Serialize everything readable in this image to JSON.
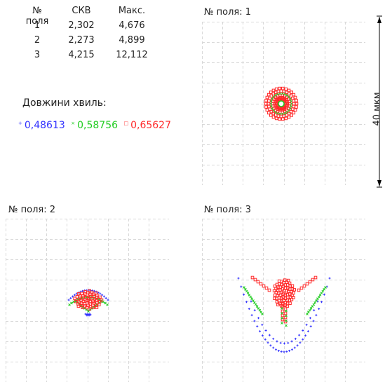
{
  "table": {
    "headers": [
      "№ поля",
      "СКВ",
      "Макс."
    ],
    "rows": [
      [
        "1",
        "2,302",
        "4,676"
      ],
      [
        "2",
        "2,273",
        "4,899"
      ],
      [
        "3",
        "4,215",
        "12,112"
      ]
    ]
  },
  "wavelengths": {
    "title": "Довжини хвиль:",
    "items": [
      {
        "value": "0,48613",
        "color": "#3333ff"
      },
      {
        "value": "0,58756",
        "color": "#33dd33"
      },
      {
        "value": "0,65627",
        "color": "#ff2a2a"
      }
    ]
  },
  "scale_label": "40 мкм",
  "chart_data": [
    {
      "type": "scatter",
      "title": "№ поля: 1",
      "grid": true,
      "series": [
        {
          "color": "#3333ff"
        },
        {
          "color": "#33dd33"
        },
        {
          "color": "#ff2a2a"
        }
      ]
    },
    {
      "type": "scatter",
      "title": "№ поля: 2",
      "grid": true,
      "series": [
        {
          "color": "#3333ff"
        },
        {
          "color": "#33dd33"
        },
        {
          "color": "#ff2a2a"
        }
      ]
    },
    {
      "type": "scatter",
      "title": "№ поля: 3",
      "grid": true,
      "series": [
        {
          "color": "#3333ff"
        },
        {
          "color": "#33dd33"
        },
        {
          "color": "#ff2a2a"
        }
      ]
    }
  ]
}
